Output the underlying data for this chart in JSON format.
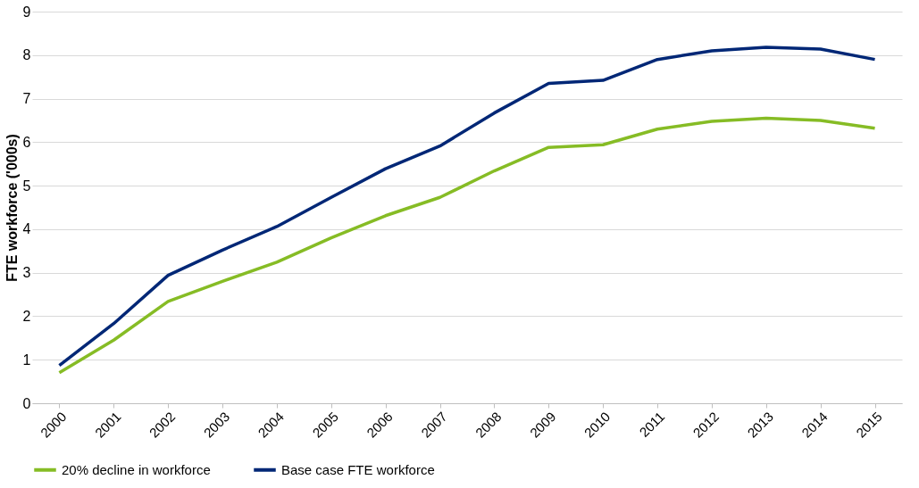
{
  "chart_data": {
    "type": "line",
    "ylabel": "FTE workforce ('000s)",
    "categories": [
      "2000",
      "2001",
      "2002",
      "2003",
      "2004",
      "2005",
      "2006",
      "2007",
      "2008",
      "2009",
      "2010",
      "2011",
      "2012",
      "2013",
      "2014",
      "2015"
    ],
    "series": [
      {
        "name": "20% decline in workforce",
        "color": "#86bc25",
        "values": [
          0.7,
          1.45,
          2.34,
          2.8,
          3.24,
          3.8,
          4.31,
          4.73,
          5.34,
          5.88,
          5.94,
          6.3,
          6.48,
          6.55,
          6.5,
          6.32
        ]
      },
      {
        "name": "Base case FTE workforce",
        "color": "#002776",
        "values": [
          0.87,
          1.83,
          2.94,
          3.52,
          4.06,
          4.73,
          5.39,
          5.91,
          6.67,
          7.35,
          7.42,
          7.9,
          8.1,
          8.18,
          8.14,
          7.9
        ]
      }
    ],
    "ylim": [
      0,
      9
    ],
    "yticks": [
      0,
      1,
      2,
      3,
      4,
      5,
      6,
      7,
      8,
      9
    ],
    "grid": "y",
    "legend": "bottom",
    "marker": "none",
    "line_style": "solid"
  }
}
